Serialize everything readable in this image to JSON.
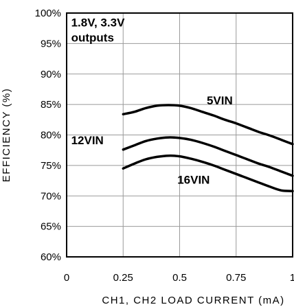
{
  "chart_data": {
    "type": "line",
    "title": "",
    "xlabel": "CH1, CH2 LOAD CURRENT (mA)",
    "ylabel": "EFFICIENCY (%)",
    "xlim": [
      0,
      1
    ],
    "ylim": [
      60,
      100
    ],
    "grid": true,
    "x_ticks": [
      0,
      0.25,
      0.5,
      0.75,
      1
    ],
    "x_tick_labels": [
      "0",
      "0.25",
      "0.5",
      "0.75",
      "1"
    ],
    "y_ticks": [
      60,
      65,
      70,
      75,
      80,
      85,
      90,
      95,
      100
    ],
    "y_tick_labels": [
      "60%",
      "65%",
      "70%",
      "75%",
      "80%",
      "85%",
      "90%",
      "95%",
      "100%"
    ],
    "annotations": [
      {
        "text": "1.8V, 3.3V",
        "x": 0.02,
        "y": 97.8
      },
      {
        "text": "outputs",
        "x": 0.02,
        "y": 95.3
      },
      {
        "text": "5VIN",
        "x": 0.62,
        "y": 85
      },
      {
        "text": "12VIN",
        "x": 0.02,
        "y": 78.5
      },
      {
        "text": "16VIN",
        "x": 0.49,
        "y": 72
      }
    ],
    "series": [
      {
        "label": "5VIN",
        "x": [
          0.25,
          0.3,
          0.35,
          0.4,
          0.45,
          0.5,
          0.55,
          0.6,
          0.65,
          0.7,
          0.75,
          0.8,
          0.85,
          0.9,
          0.95,
          1.0
        ],
        "y": [
          83.4,
          83.8,
          84.4,
          84.8,
          84.9,
          84.8,
          84.4,
          83.8,
          83.2,
          82.5,
          81.9,
          81.2,
          80.5,
          79.9,
          79.2,
          78.5
        ]
      },
      {
        "label": "12VIN",
        "x": [
          0.25,
          0.3,
          0.35,
          0.4,
          0.45,
          0.5,
          0.55,
          0.6,
          0.65,
          0.7,
          0.75,
          0.8,
          0.85,
          0.9,
          0.95,
          1.0
        ],
        "y": [
          77.6,
          78.3,
          79.0,
          79.4,
          79.6,
          79.5,
          79.2,
          78.7,
          78.1,
          77.4,
          76.7,
          76.0,
          75.3,
          74.7,
          74.0,
          73.3
        ]
      },
      {
        "label": "16VIN",
        "x": [
          0.25,
          0.3,
          0.35,
          0.4,
          0.45,
          0.5,
          0.55,
          0.6,
          0.65,
          0.7,
          0.75,
          0.8,
          0.85,
          0.9,
          0.95,
          1.0
        ],
        "y": [
          74.5,
          75.3,
          76.0,
          76.4,
          76.6,
          76.5,
          76.1,
          75.6,
          75.0,
          74.3,
          73.6,
          72.9,
          72.2,
          71.5,
          70.9,
          70.8
        ]
      }
    ]
  }
}
